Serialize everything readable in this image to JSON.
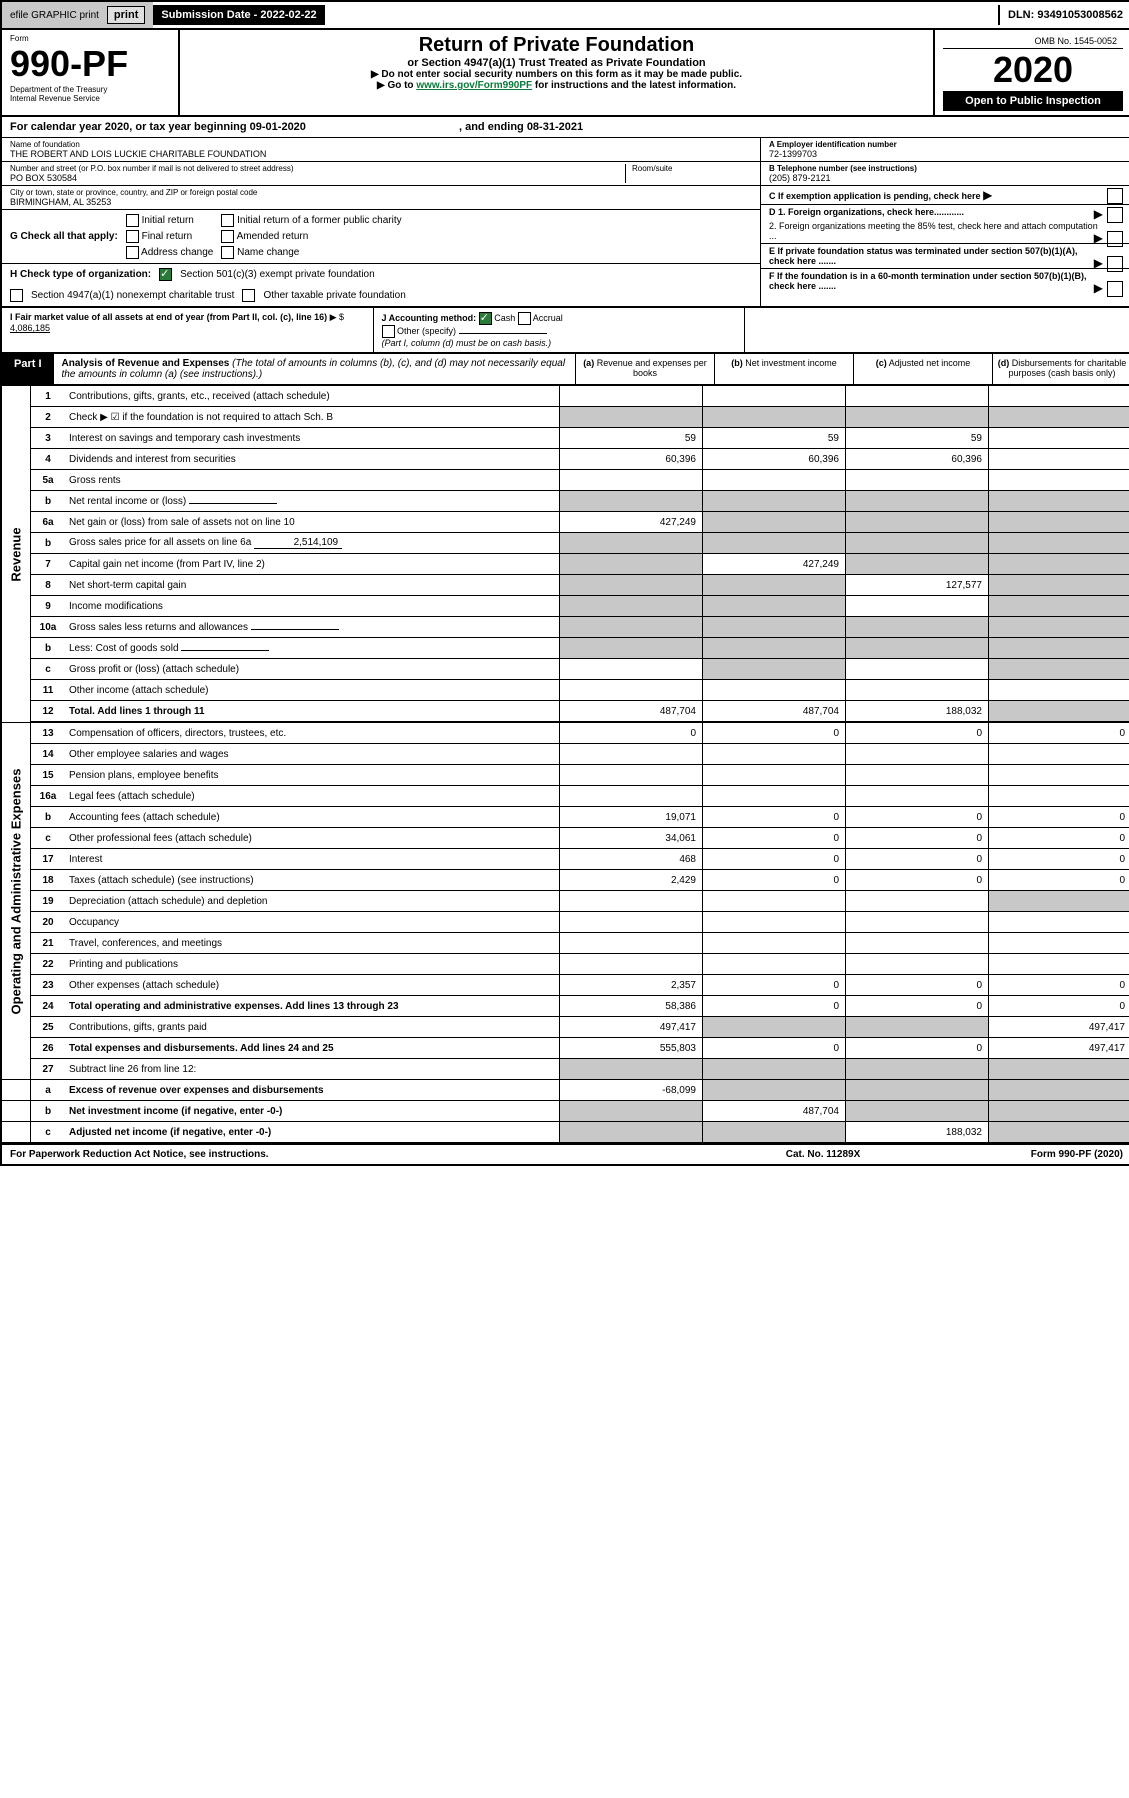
{
  "topbar": {
    "efile": "efile GRAPHIC print",
    "submission_label": "Submission Date - 2022-02-22",
    "dln_label": "DLN: 93491053008562"
  },
  "header": {
    "form_label": "Form",
    "form_number": "990-PF",
    "dept": "Department of the Treasury",
    "irs": "Internal Revenue Service",
    "title": "Return of Private Foundation",
    "subtitle": "or Section 4947(a)(1) Trust Treated as Private Foundation",
    "instr1": "▶ Do not enter social security numbers on this form as it may be made public.",
    "instr2_pre": "▶ Go to ",
    "instr2_link": "www.irs.gov/Form990PF",
    "instr2_post": " for instructions and the latest information.",
    "omb": "OMB No. 1545-0052",
    "year": "2020",
    "open_public": "Open to Public Inspection"
  },
  "cal_year": {
    "text": "For calendar year 2020, or tax year beginning 09-01-2020",
    "ending": ", and ending 08-31-2021"
  },
  "entity": {
    "name_label": "Name of foundation",
    "name": "THE ROBERT AND LOIS LUCKIE CHARITABLE FOUNDATION",
    "addr_label": "Number and street (or P.O. box number if mail is not delivered to street address)",
    "addr": "PO BOX 530584",
    "room_label": "Room/suite",
    "city_label": "City or town, state or province, country, and ZIP or foreign postal code",
    "city": "BIRMINGHAM, AL  35253",
    "ein_label": "A Employer identification number",
    "ein": "72-1399703",
    "phone_label": "B Telephone number (see instructions)",
    "phone": "(205) 879-2121",
    "c_label": "C If exemption application is pending, check here",
    "d1": "D 1. Foreign organizations, check here............",
    "d2": "2. Foreign organizations meeting the 85% test, check here and attach computation ...",
    "e_label": "E If private foundation status was terminated under section 507(b)(1)(A), check here .......",
    "f_label": "F If the foundation is in a 60-month termination under section 507(b)(1)(B), check here .......",
    "g_label": "G Check all that apply:",
    "g_opts": {
      "initial": "Initial return",
      "initial_former": "Initial return of a former public charity",
      "final": "Final return",
      "amended": "Amended return",
      "addr_change": "Address change",
      "name_change": "Name change"
    },
    "h_label": "H Check type of organization:",
    "h_501c3": "Section 501(c)(3) exempt private foundation",
    "h_4947": "Section 4947(a)(1) nonexempt charitable trust",
    "h_other": "Other taxable private foundation",
    "i_label": "I Fair market value of all assets at end of year (from Part II, col. (c), line 16)",
    "i_arrow": "▶ $",
    "i_value": "4,086,185",
    "j_label": "J Accounting method:",
    "j_cash": "Cash",
    "j_accrual": "Accrual",
    "j_other": "Other (specify)",
    "j_note": "(Part I, column (d) must be on cash basis.)"
  },
  "part1": {
    "badge": "Part I",
    "title": "Analysis of Revenue and Expenses",
    "title_note": "(The total of amounts in columns (b), (c), and (d) may not necessarily equal the amounts in column (a) (see instructions).)",
    "col_a": "(a) Revenue and expenses per books",
    "col_b": "(b) Net investment income",
    "col_c": "(c) Adjusted net income",
    "col_d": "(d) Disbursements for charitable purposes (cash basis only)"
  },
  "section_labels": {
    "revenue": "Revenue",
    "expenses": "Operating and Administrative Expenses"
  },
  "lines": {
    "l1": {
      "n": "1",
      "label": "Contributions, gifts, grants, etc., received (attach schedule)",
      "a": "",
      "b": "",
      "c": "",
      "d": ""
    },
    "l2": {
      "n": "2",
      "label": "Check ▶ ☑ if the foundation is not required to attach Sch. B",
      "a": "",
      "b": "",
      "c": "",
      "d": "",
      "grey_bcd": true,
      "grey_a": true
    },
    "l3": {
      "n": "3",
      "label": "Interest on savings and temporary cash investments",
      "a": "59",
      "b": "59",
      "c": "59",
      "d": ""
    },
    "l4": {
      "n": "4",
      "label": "Dividends and interest from securities",
      "a": "60,396",
      "b": "60,396",
      "c": "60,396",
      "d": ""
    },
    "l5a": {
      "n": "5a",
      "label": "Gross rents",
      "a": "",
      "b": "",
      "c": "",
      "d": ""
    },
    "l5b": {
      "n": "b",
      "label": "Net rental income or (loss)",
      "inline": "",
      "a": "",
      "b": "",
      "c": "",
      "d": "",
      "grey_all": true
    },
    "l6a": {
      "n": "6a",
      "label": "Net gain or (loss) from sale of assets not on line 10",
      "a": "427,249",
      "b": "",
      "c": "",
      "d": "",
      "grey_bcd": true
    },
    "l6b": {
      "n": "b",
      "label": "Gross sales price for all assets on line 6a",
      "inline": "2,514,109",
      "grey_all": true
    },
    "l7": {
      "n": "7",
      "label": "Capital gain net income (from Part IV, line 2)",
      "a": "",
      "b": "427,249",
      "c": "",
      "d": "",
      "grey_a": true,
      "grey_cd": true
    },
    "l8": {
      "n": "8",
      "label": "Net short-term capital gain",
      "a": "",
      "b": "",
      "c": "127,577",
      "d": "",
      "grey_ab": true,
      "grey_d": true
    },
    "l9": {
      "n": "9",
      "label": "Income modifications",
      "a": "",
      "b": "",
      "c": "",
      "d": "",
      "grey_ab": true,
      "grey_d": true
    },
    "l10a": {
      "n": "10a",
      "label": "Gross sales less returns and allowances",
      "inline": "",
      "grey_all": true
    },
    "l10b": {
      "n": "b",
      "label": "Less: Cost of goods sold",
      "inline": "",
      "grey_all": true
    },
    "l10c": {
      "n": "c",
      "label": "Gross profit or (loss) (attach schedule)",
      "a": "",
      "b": "",
      "c": "",
      "d": "",
      "grey_b": true,
      "grey_d": true
    },
    "l11": {
      "n": "11",
      "label": "Other income (attach schedule)",
      "a": "",
      "b": "",
      "c": "",
      "d": ""
    },
    "l12": {
      "n": "12",
      "label": "Total. Add lines 1 through 11",
      "a": "487,704",
      "b": "487,704",
      "c": "188,032",
      "d": "",
      "bold": true,
      "grey_d": true
    },
    "l13": {
      "n": "13",
      "label": "Compensation of officers, directors, trustees, etc.",
      "a": "0",
      "b": "0",
      "c": "0",
      "d": "0"
    },
    "l14": {
      "n": "14",
      "label": "Other employee salaries and wages",
      "a": "",
      "b": "",
      "c": "",
      "d": ""
    },
    "l15": {
      "n": "15",
      "label": "Pension plans, employee benefits",
      "a": "",
      "b": "",
      "c": "",
      "d": ""
    },
    "l16a": {
      "n": "16a",
      "label": "Legal fees (attach schedule)",
      "a": "",
      "b": "",
      "c": "",
      "d": ""
    },
    "l16b": {
      "n": "b",
      "label": "Accounting fees (attach schedule)",
      "a": "19,071",
      "b": "0",
      "c": "0",
      "d": "0"
    },
    "l16c": {
      "n": "c",
      "label": "Other professional fees (attach schedule)",
      "a": "34,061",
      "b": "0",
      "c": "0",
      "d": "0"
    },
    "l17": {
      "n": "17",
      "label": "Interest",
      "a": "468",
      "b": "0",
      "c": "0",
      "d": "0"
    },
    "l18": {
      "n": "18",
      "label": "Taxes (attach schedule) (see instructions)",
      "a": "2,429",
      "b": "0",
      "c": "0",
      "d": "0"
    },
    "l19": {
      "n": "19",
      "label": "Depreciation (attach schedule) and depletion",
      "a": "",
      "b": "",
      "c": "",
      "d": "",
      "grey_d": true
    },
    "l20": {
      "n": "20",
      "label": "Occupancy",
      "a": "",
      "b": "",
      "c": "",
      "d": ""
    },
    "l21": {
      "n": "21",
      "label": "Travel, conferences, and meetings",
      "a": "",
      "b": "",
      "c": "",
      "d": ""
    },
    "l22": {
      "n": "22",
      "label": "Printing and publications",
      "a": "",
      "b": "",
      "c": "",
      "d": ""
    },
    "l23": {
      "n": "23",
      "label": "Other expenses (attach schedule)",
      "a": "2,357",
      "b": "0",
      "c": "0",
      "d": "0"
    },
    "l24": {
      "n": "24",
      "label": "Total operating and administrative expenses. Add lines 13 through 23",
      "a": "58,386",
      "b": "0",
      "c": "0",
      "d": "0",
      "bold": true
    },
    "l25": {
      "n": "25",
      "label": "Contributions, gifts, grants paid",
      "a": "497,417",
      "b": "",
      "c": "",
      "d": "497,417",
      "grey_bc": true
    },
    "l26": {
      "n": "26",
      "label": "Total expenses and disbursements. Add lines 24 and 25",
      "a": "555,803",
      "b": "0",
      "c": "0",
      "d": "497,417",
      "bold": true
    },
    "l27": {
      "n": "27",
      "label": "Subtract line 26 from line 12:",
      "grey_all": true
    },
    "l27a": {
      "n": "a",
      "label": "Excess of revenue over expenses and disbursements",
      "a": "-68,099",
      "b": "",
      "c": "",
      "d": "",
      "grey_bcd": true,
      "bold": true
    },
    "l27b": {
      "n": "b",
      "label": "Net investment income (if negative, enter -0-)",
      "a": "",
      "b": "487,704",
      "c": "",
      "d": "",
      "grey_a": true,
      "grey_cd": true,
      "bold": true
    },
    "l27c": {
      "n": "c",
      "label": "Adjusted net income (if negative, enter -0-)",
      "a": "",
      "b": "",
      "c": "188,032",
      "d": "",
      "grey_ab": true,
      "grey_d": true,
      "bold": true
    }
  },
  "footer": {
    "left": "For Paperwork Reduction Act Notice, see instructions.",
    "mid": "Cat. No. 11289X",
    "right": "Form 990-PF (2020)"
  },
  "colors": {
    "black": "#000000",
    "grey_bg": "#c8c8c8",
    "green_link": "#0a7a3b",
    "check_green": "#2a7a3a"
  }
}
